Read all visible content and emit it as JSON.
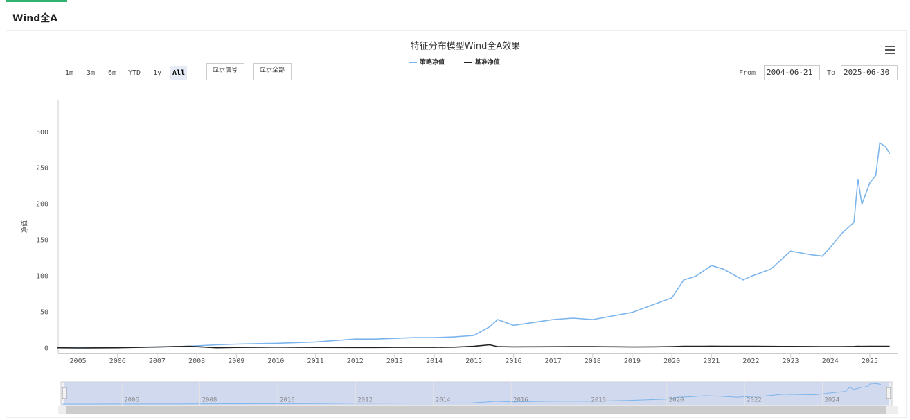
{
  "tab": "Wind全A",
  "toolbar": {
    "range_buttons": [
      "1m",
      "3m",
      "6m",
      "YTD",
      "1y",
      "All"
    ],
    "active_button": 5,
    "signal_buttons": [
      "显示信号",
      "显示全部"
    ],
    "from_label": "From",
    "from_date": "2004-06-21",
    "to_label": "To",
    "to_date": "2025-06-30"
  },
  "chart_data": {
    "type": "line",
    "title": "特征分布模型Wind全A效果",
    "y_label": "净值",
    "x": [
      2004.47,
      2005,
      2006,
      2007,
      2007.8,
      2008.5,
      2009,
      2010,
      2011,
      2012,
      2012.5,
      2013,
      2013.5,
      2014,
      2014.5,
      2015,
      2015.4,
      2015.6,
      2016,
      2016.5,
      2017,
      2017.5,
      2018,
      2018.5,
      2019,
      2019.5,
      2020,
      2020.3,
      2020.6,
      2021,
      2021.3,
      2021.8,
      2022,
      2022.5,
      2022.8,
      2023,
      2023.5,
      2023.8,
      2024,
      2024.3,
      2024.6,
      2024.7,
      2024.8,
      2025,
      2025.15,
      2025.25,
      2025.4,
      2025.5
    ],
    "series": [
      {
        "name": "策略净值",
        "color": "#7cb5ec",
        "values": [
          1,
          1,
          1.5,
          2,
          3,
          5,
          6,
          7,
          9,
          13,
          13,
          14,
          15,
          15,
          16,
          18,
          30,
          40,
          32,
          36,
          40,
          42,
          40,
          45,
          50,
          60,
          70,
          95,
          100,
          115,
          110,
          95,
          100,
          110,
          125,
          135,
          130,
          128,
          140,
          160,
          175,
          235,
          200,
          230,
          240,
          285,
          280,
          270
        ]
      },
      {
        "name": "基准净值",
        "color": "#222222",
        "values": [
          1,
          0.7,
          1,
          2,
          3,
          1,
          1.5,
          1.8,
          1.5,
          1.4,
          1.4,
          1.6,
          1.6,
          1.6,
          1.8,
          3,
          5,
          2.5,
          2.2,
          2.3,
          2.4,
          2.5,
          2.5,
          2.3,
          2,
          2.2,
          2.6,
          3,
          3,
          3.2,
          3,
          3,
          3,
          2.9,
          2.8,
          2.8,
          2.7,
          2.6,
          2.5,
          2.6,
          2.8,
          3,
          2.9,
          3,
          3,
          3.1,
          3,
          3
        ]
      }
    ],
    "xlim": [
      2004.5,
      2025.7
    ],
    "xticks": [
      2005,
      2006,
      2007,
      2008,
      2009,
      2010,
      2011,
      2012,
      2013,
      2014,
      2015,
      2016,
      2017,
      2018,
      2019,
      2020,
      2021,
      2022,
      2023,
      2024,
      2025
    ],
    "ylim": [
      -7,
      344
    ],
    "yticks": [
      0,
      50,
      100,
      150,
      200,
      250,
      300
    ],
    "navigator_xticks": [
      2006,
      2008,
      2010,
      2012,
      2014,
      2016,
      2018,
      2020,
      2022,
      2024
    ]
  }
}
